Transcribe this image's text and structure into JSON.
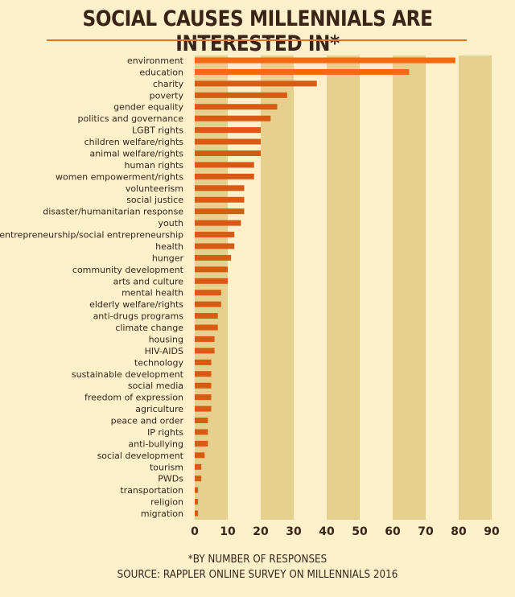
{
  "title": "SOCIAL CAUSES MILLENNIALS ARE INTERESTED IN*",
  "footnote": "*BY NUMBER OF RESPONSES",
  "source": "SOURCE: RAPPLER ONLINE SURVEY ON MILLENNIALS 2016",
  "colors": {
    "background": "#fdf0cb",
    "band": "#e6d08e",
    "bar": "#d95a12",
    "bar_top": "#f26a14",
    "title_rule": "#e8701e"
  },
  "chart_data": {
    "type": "bar",
    "orientation": "horizontal",
    "title": "SOCIAL CAUSES MILLENNIALS ARE INTERESTED IN*",
    "xlabel": "",
    "ylabel": "",
    "xlim": [
      0,
      90
    ],
    "xticks": [
      0,
      10,
      20,
      30,
      40,
      50,
      60,
      70,
      80,
      90
    ],
    "grid": "alternating vertical bands",
    "categories": [
      "environment",
      "education",
      "charity",
      "poverty",
      "gender equality",
      "politics and governance",
      "LGBT rights",
      "children welfare/rights",
      "animal welfare/rights",
      "human rights",
      "women empowerment/rights",
      "volunteerism",
      "social justice",
      "disaster/humanitarian response",
      "youth",
      "entrepreneurship/social entrepreneurship",
      "health",
      "hunger",
      "community development",
      "arts and culture",
      "mental health",
      "elderly welfare/rights",
      "anti-drugs programs",
      "climate change",
      "housing",
      "HIV-AIDS",
      "technology",
      "sustainable development",
      "social media",
      "freedom of expression",
      "agriculture",
      "peace and order",
      "IP rights",
      "anti-bullying",
      "social development",
      "tourism",
      "PWDs",
      "transportation",
      "religion",
      "migration"
    ],
    "values": [
      79,
      65,
      37,
      28,
      25,
      23,
      20,
      20,
      20,
      18,
      18,
      15,
      15,
      15,
      14,
      12,
      12,
      11,
      10,
      10,
      8,
      8,
      7,
      7,
      6,
      6,
      5,
      5,
      5,
      5,
      5,
      4,
      4,
      4,
      3,
      2,
      2,
      1,
      1,
      1
    ]
  }
}
